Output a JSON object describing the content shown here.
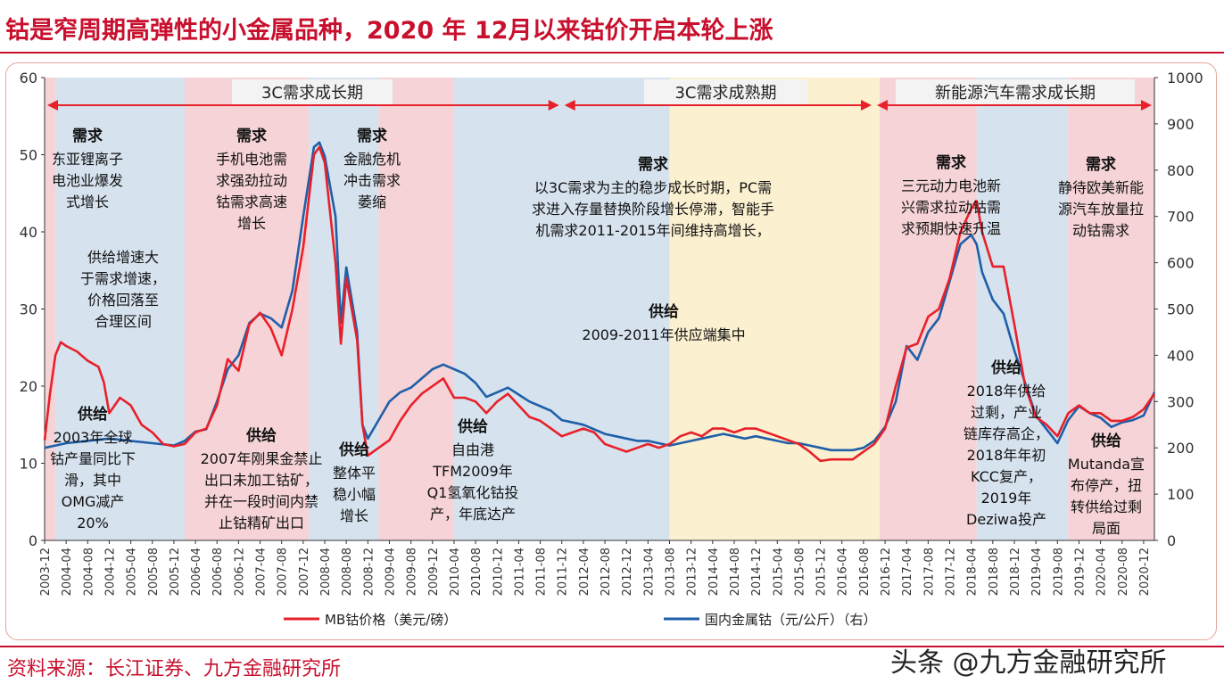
{
  "title": "钴是窄周期高弹性的小金属品种，2020 年 12月以来钴价开启本轮上涨",
  "source": "资料来源：长江证券、九方金融研究所",
  "watermark": "头条 @九方金融研究所",
  "colors": {
    "mb_line": "#e8202a",
    "domestic_line": "#1f5fa8",
    "phase_red": "#f6d3d6",
    "phase_blue": "#d6e3ef",
    "phase_yellow": "#fbf0cf",
    "arrow": "#e8202a",
    "title_red": "#c8102e"
  },
  "chart_data": {
    "type": "line",
    "x_labels": [
      "2003-12",
      "2004-04",
      "2004-08",
      "2004-12",
      "2005-04",
      "2005-08",
      "2005-12",
      "2006-04",
      "2006-08",
      "2006-12",
      "2007-04",
      "2007-08",
      "2007-12",
      "2008-04",
      "2008-08",
      "2008-12",
      "2009-04",
      "2009-08",
      "2009-12",
      "2010-04",
      "2010-08",
      "2010-12",
      "2011-04",
      "2011-08",
      "2011-12",
      "2012-04",
      "2012-08",
      "2012-12",
      "2013-04",
      "2013-08",
      "2013-12",
      "2014-04",
      "2014-08",
      "2014-12",
      "2015-04",
      "2015-08",
      "2015-12",
      "2016-04",
      "2016-08",
      "2016-12",
      "2017-04",
      "2017-08",
      "2017-12",
      "2018-04",
      "2018-08",
      "2018-12",
      "2019-04",
      "2019-08",
      "2019-12",
      "2020-04",
      "2020-08",
      "2020-12"
    ],
    "y_left": {
      "min": 0,
      "max": 60,
      "ticks": [
        0,
        10,
        20,
        30,
        40,
        50,
        60
      ]
    },
    "y_right": {
      "min": 0,
      "max": 1000,
      "ticks": [
        0,
        100,
        200,
        300,
        400,
        500,
        600,
        700,
        800,
        900,
        1000
      ]
    },
    "phases": [
      {
        "label": "3C需求成长期",
        "from": "2003-12",
        "to": "2011-12"
      },
      {
        "label": "3C需求成熟期",
        "from": "2011-12",
        "to": "2016-10"
      },
      {
        "label": "新能源汽车需求成长期",
        "from": "2016-10",
        "to": "2021-02"
      }
    ],
    "bands": [
      {
        "from": "2003-12",
        "to": "2004-02",
        "tone": "red"
      },
      {
        "from": "2004-02",
        "to": "2006-02",
        "tone": "blue"
      },
      {
        "from": "2006-02",
        "to": "2008-01",
        "tone": "red"
      },
      {
        "from": "2008-01",
        "to": "2009-02",
        "tone": "blue"
      },
      {
        "from": "2009-02",
        "to": "2010-04",
        "tone": "red"
      },
      {
        "from": "2010-04",
        "to": "2013-08",
        "tone": "blue"
      },
      {
        "from": "2013-08",
        "to": "2016-11",
        "tone": "yellow"
      },
      {
        "from": "2016-11",
        "to": "2018-05",
        "tone": "red"
      },
      {
        "from": "2018-05",
        "to": "2019-10",
        "tone": "blue"
      },
      {
        "from": "2019-10",
        "to": "2021-02",
        "tone": "red"
      }
    ],
    "series": [
      {
        "name": "MB钴价格（美元/磅）",
        "axis": "left",
        "points": [
          [
            "2003-12",
            13
          ],
          [
            "2004-01",
            19
          ],
          [
            "2004-02",
            24
          ],
          [
            "2004-03",
            25.7
          ],
          [
            "2004-04",
            25.2
          ],
          [
            "2004-06",
            24.5
          ],
          [
            "2004-08",
            23.3
          ],
          [
            "2004-10",
            22.5
          ],
          [
            "2004-11",
            20.5
          ],
          [
            "2004-12",
            16.5
          ],
          [
            "2005-02",
            18.5
          ],
          [
            "2005-04",
            17.5
          ],
          [
            "2005-06",
            15
          ],
          [
            "2005-08",
            14
          ],
          [
            "2005-10",
            12.5
          ],
          [
            "2005-12",
            12.2
          ],
          [
            "2006-02",
            12.5
          ],
          [
            "2006-04",
            14
          ],
          [
            "2006-06",
            14.5
          ],
          [
            "2006-08",
            17.5
          ],
          [
            "2006-10",
            23.5
          ],
          [
            "2006-12",
            22
          ],
          [
            "2007-02",
            28
          ],
          [
            "2007-04",
            29.5
          ],
          [
            "2007-06",
            27.5
          ],
          [
            "2007-08",
            24
          ],
          [
            "2007-10",
            30
          ],
          [
            "2007-12",
            38
          ],
          [
            "2008-02",
            50
          ],
          [
            "2008-03",
            51
          ],
          [
            "2008-04",
            49
          ],
          [
            "2008-06",
            36
          ],
          [
            "2008-07",
            25.5
          ],
          [
            "2008-08",
            34
          ],
          [
            "2008-10",
            26
          ],
          [
            "2008-11",
            15
          ],
          [
            "2008-12",
            11
          ],
          [
            "2009-02",
            12
          ],
          [
            "2009-04",
            13
          ],
          [
            "2009-06",
            15.5
          ],
          [
            "2009-08",
            17.5
          ],
          [
            "2009-10",
            19
          ],
          [
            "2009-12",
            20
          ],
          [
            "2010-02",
            21
          ],
          [
            "2010-04",
            18.5
          ],
          [
            "2010-06",
            18.5
          ],
          [
            "2010-08",
            18
          ],
          [
            "2010-10",
            16.5
          ],
          [
            "2010-12",
            18
          ],
          [
            "2011-02",
            19
          ],
          [
            "2011-04",
            17.5
          ],
          [
            "2011-06",
            16
          ],
          [
            "2011-08",
            15.5
          ],
          [
            "2011-10",
            14.5
          ],
          [
            "2011-12",
            13.5
          ],
          [
            "2012-02",
            14
          ],
          [
            "2012-04",
            14.5
          ],
          [
            "2012-06",
            14
          ],
          [
            "2012-08",
            12.5
          ],
          [
            "2012-10",
            12
          ],
          [
            "2012-12",
            11.5
          ],
          [
            "2013-02",
            12
          ],
          [
            "2013-04",
            12.5
          ],
          [
            "2013-06",
            12
          ],
          [
            "2013-08",
            12.5
          ],
          [
            "2013-10",
            13.5
          ],
          [
            "2013-12",
            14
          ],
          [
            "2014-02",
            13.5
          ],
          [
            "2014-04",
            14.5
          ],
          [
            "2014-06",
            14.5
          ],
          [
            "2014-08",
            14
          ],
          [
            "2014-10",
            14.5
          ],
          [
            "2014-12",
            14.5
          ],
          [
            "2015-02",
            14
          ],
          [
            "2015-04",
            13.5
          ],
          [
            "2015-06",
            13
          ],
          [
            "2015-08",
            12.5
          ],
          [
            "2015-10",
            11.5
          ],
          [
            "2015-12",
            10.3
          ],
          [
            "2016-02",
            10.5
          ],
          [
            "2016-04",
            10.5
          ],
          [
            "2016-06",
            10.5
          ],
          [
            "2016-08",
            11.5
          ],
          [
            "2016-10",
            12.5
          ],
          [
            "2016-12",
            14.5
          ],
          [
            "2017-02",
            20
          ],
          [
            "2017-04",
            25
          ],
          [
            "2017-06",
            25.5
          ],
          [
            "2017-08",
            29
          ],
          [
            "2017-10",
            30
          ],
          [
            "2017-12",
            34
          ],
          [
            "2018-02",
            40
          ],
          [
            "2018-04",
            43
          ],
          [
            "2018-05",
            44
          ],
          [
            "2018-06",
            40
          ],
          [
            "2018-08",
            35.5
          ],
          [
            "2018-10",
            35.5
          ],
          [
            "2018-12",
            28
          ],
          [
            "2019-02",
            20
          ],
          [
            "2019-04",
            16
          ],
          [
            "2019-06",
            15
          ],
          [
            "2019-08",
            13.5
          ],
          [
            "2019-10",
            16.5
          ],
          [
            "2019-12",
            17.5
          ],
          [
            "2020-02",
            16.5
          ],
          [
            "2020-04",
            16.5
          ],
          [
            "2020-06",
            15.5
          ],
          [
            "2020-08",
            15.5
          ],
          [
            "2020-10",
            16
          ],
          [
            "2020-12",
            17
          ],
          [
            "2021-02",
            19
          ]
        ]
      },
      {
        "name": "国内金属钴（元/公斤）（右）",
        "axis": "right",
        "points": [
          [
            "2003-12",
            200
          ],
          [
            "2004-02",
            205
          ],
          [
            "2004-04",
            210
          ],
          [
            "2004-08",
            215
          ],
          [
            "2004-12",
            220
          ],
          [
            "2005-04",
            215
          ],
          [
            "2005-08",
            210
          ],
          [
            "2005-12",
            205
          ],
          [
            "2006-02",
            215
          ],
          [
            "2006-04",
            235
          ],
          [
            "2006-06",
            240
          ],
          [
            "2006-08",
            300
          ],
          [
            "2006-10",
            370
          ],
          [
            "2006-12",
            400
          ],
          [
            "2007-02",
            470
          ],
          [
            "2007-04",
            490
          ],
          [
            "2007-06",
            480
          ],
          [
            "2007-08",
            460
          ],
          [
            "2007-10",
            540
          ],
          [
            "2007-12",
            700
          ],
          [
            "2008-02",
            850
          ],
          [
            "2008-03",
            860
          ],
          [
            "2008-04",
            830
          ],
          [
            "2008-06",
            700
          ],
          [
            "2008-07",
            470
          ],
          [
            "2008-08",
            590
          ],
          [
            "2008-10",
            450
          ],
          [
            "2008-11",
            250
          ],
          [
            "2008-12",
            220
          ],
          [
            "2009-02",
            260
          ],
          [
            "2009-04",
            300
          ],
          [
            "2009-06",
            320
          ],
          [
            "2009-08",
            330
          ],
          [
            "2009-10",
            350
          ],
          [
            "2009-12",
            370
          ],
          [
            "2010-02",
            380
          ],
          [
            "2010-04",
            370
          ],
          [
            "2010-06",
            360
          ],
          [
            "2010-08",
            340
          ],
          [
            "2010-10",
            310
          ],
          [
            "2010-12",
            320
          ],
          [
            "2011-02",
            330
          ],
          [
            "2011-04",
            315
          ],
          [
            "2011-06",
            300
          ],
          [
            "2011-08",
            290
          ],
          [
            "2011-10",
            280
          ],
          [
            "2011-12",
            260
          ],
          [
            "2012-02",
            255
          ],
          [
            "2012-04",
            250
          ],
          [
            "2012-06",
            240
          ],
          [
            "2012-08",
            230
          ],
          [
            "2012-10",
            225
          ],
          [
            "2012-12",
            220
          ],
          [
            "2013-02",
            215
          ],
          [
            "2013-04",
            215
          ],
          [
            "2013-06",
            210
          ],
          [
            "2013-08",
            205
          ],
          [
            "2013-10",
            210
          ],
          [
            "2013-12",
            215
          ],
          [
            "2014-02",
            220
          ],
          [
            "2014-04",
            225
          ],
          [
            "2014-06",
            230
          ],
          [
            "2014-08",
            225
          ],
          [
            "2014-10",
            220
          ],
          [
            "2014-12",
            225
          ],
          [
            "2015-02",
            220
          ],
          [
            "2015-04",
            215
          ],
          [
            "2015-06",
            210
          ],
          [
            "2015-08",
            210
          ],
          [
            "2015-10",
            205
          ],
          [
            "2015-12",
            200
          ],
          [
            "2016-02",
            195
          ],
          [
            "2016-04",
            195
          ],
          [
            "2016-06",
            195
          ],
          [
            "2016-08",
            200
          ],
          [
            "2016-10",
            215
          ],
          [
            "2016-12",
            245
          ],
          [
            "2017-02",
            300
          ],
          [
            "2017-04",
            420
          ],
          [
            "2017-06",
            390
          ],
          [
            "2017-08",
            450
          ],
          [
            "2017-10",
            480
          ],
          [
            "2017-12",
            560
          ],
          [
            "2018-02",
            640
          ],
          [
            "2018-04",
            660
          ],
          [
            "2018-05",
            640
          ],
          [
            "2018-06",
            580
          ],
          [
            "2018-08",
            520
          ],
          [
            "2018-10",
            490
          ],
          [
            "2018-12",
            410
          ],
          [
            "2019-02",
            340
          ],
          [
            "2019-04",
            270
          ],
          [
            "2019-06",
            240
          ],
          [
            "2019-08",
            210
          ],
          [
            "2019-10",
            260
          ],
          [
            "2019-12",
            290
          ],
          [
            "2020-02",
            275
          ],
          [
            "2020-04",
            265
          ],
          [
            "2020-06",
            245
          ],
          [
            "2020-08",
            255
          ],
          [
            "2020-10",
            260
          ],
          [
            "2020-12",
            270
          ],
          [
            "2021-02",
            320
          ]
        ]
      }
    ],
    "annotations": [
      {
        "title": "需求",
        "lines": [
          "东亚锂离子",
          "电池业爆发",
          "式增长"
        ]
      },
      {
        "title": "",
        "lines": [
          "供给增速大",
          "于需求增速，",
          "价格回落至",
          "合理区间"
        ]
      },
      {
        "title": "需求",
        "lines": [
          "手机电池需",
          "求强劲拉动",
          "钴需求高速",
          "增长"
        ]
      },
      {
        "title": "需求",
        "lines": [
          "金融危机",
          "冲击需求",
          "萎缩"
        ]
      },
      {
        "title": "需求",
        "lines": [
          "以3C需求为主的稳步成长时期，PC需",
          "求进入存量替换阶段增长停滞，智能手",
          "机需求2011-2015年间维持高增长，"
        ]
      },
      {
        "title": "供给",
        "lines": [
          "2009-2011年供应端集中"
        ]
      },
      {
        "title": "需求",
        "lines": [
          "三元动力电池新",
          "兴需求拉动钴需",
          "求预期快速升温"
        ]
      },
      {
        "title": "需求",
        "lines": [
          "静待欧美新能",
          "源汽车放量拉",
          "动钴需求"
        ]
      },
      {
        "title": "供给",
        "lines": [
          "2003年全球",
          "钴产量同比下",
          "滑，其中",
          "OMG减产",
          "20%"
        ]
      },
      {
        "title": "供给",
        "lines": [
          "2007年刚果金禁止",
          "出口未加工钴矿，",
          "并在一段时间内禁",
          "止钴精矿出口"
        ]
      },
      {
        "title": "供给",
        "lines": [
          "整体平",
          "稳小幅",
          "增长"
        ]
      },
      {
        "title": "供给",
        "lines": [
          "自由港",
          "TFM2009年",
          "Q1氢氧化钴投",
          "产，年底达产"
        ]
      },
      {
        "title": "供给",
        "lines": [
          "2018年供给",
          "过剩，产业",
          "链库存高企，",
          "2018年年初",
          "KCC复产，",
          "2019年",
          "Deziwa投产"
        ]
      },
      {
        "title": "供给",
        "lines": [
          "Mutanda宣",
          "布停产，扭",
          "转供给过剩",
          "局面"
        ]
      }
    ]
  }
}
